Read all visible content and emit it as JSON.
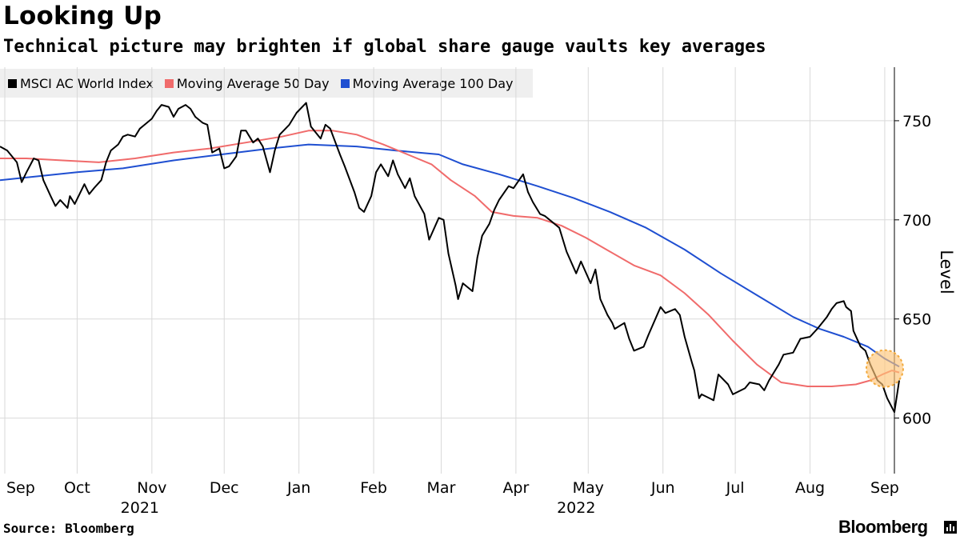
{
  "title": "Looking Up",
  "subtitle": "Technical picture may brighten if global share gauge vaults key averages",
  "source": "Source: Bloomberg",
  "brand": "Bloomberg",
  "chart_data": {
    "type": "line",
    "xlabel": "",
    "ylabel": "Level",
    "ylim": [
      572,
      777
    ],
    "yticks": [
      600,
      650,
      700,
      750
    ],
    "xlim": [
      "2021-08-30",
      "2022-09-05"
    ],
    "month_ticks": [
      {
        "date": "2021-09-01",
        "label": "Sep"
      },
      {
        "date": "2021-10-01",
        "label": "Oct"
      },
      {
        "date": "2021-11-01",
        "label": "Nov"
      },
      {
        "date": "2021-12-01",
        "label": "Dec"
      },
      {
        "date": "2022-01-01",
        "label": "Jan"
      },
      {
        "date": "2022-02-01",
        "label": "Feb"
      },
      {
        "date": "2022-03-01",
        "label": "Mar"
      },
      {
        "date": "2022-04-01",
        "label": "Apr"
      },
      {
        "date": "2022-05-01",
        "label": "May"
      },
      {
        "date": "2022-06-01",
        "label": "Jun"
      },
      {
        "date": "2022-07-01",
        "label": "Jul"
      },
      {
        "date": "2022-08-01",
        "label": "Aug"
      },
      {
        "date": "2022-09-01",
        "label": "Sep"
      }
    ],
    "year_labels": [
      {
        "date": "2021-11-01",
        "label": "2021"
      },
      {
        "date": "2022-05-01",
        "label": "2022"
      }
    ],
    "grid": true,
    "legend_position": "top-left",
    "highlight": {
      "date": "2022-09-01",
      "value": 625
    },
    "series": [
      {
        "name": "MSCI AC World Index",
        "color": "#000000",
        "points": [
          [
            "2021-08-30",
            737
          ],
          [
            "2021-09-02",
            735
          ],
          [
            "2021-09-06",
            729
          ],
          [
            "2021-09-08",
            719
          ],
          [
            "2021-09-10",
            724
          ],
          [
            "2021-09-13",
            731
          ],
          [
            "2021-09-15",
            730
          ],
          [
            "2021-09-17",
            720
          ],
          [
            "2021-09-20",
            712
          ],
          [
            "2021-09-22",
            707
          ],
          [
            "2021-09-24",
            710
          ],
          [
            "2021-09-27",
            706
          ],
          [
            "2021-09-28",
            712
          ],
          [
            "2021-09-30",
            708
          ],
          [
            "2021-10-04",
            718
          ],
          [
            "2021-10-06",
            713
          ],
          [
            "2021-10-08",
            716
          ],
          [
            "2021-10-11",
            720
          ],
          [
            "2021-10-13",
            729
          ],
          [
            "2021-10-15",
            735
          ],
          [
            "2021-10-18",
            738
          ],
          [
            "2021-10-20",
            742
          ],
          [
            "2021-10-22",
            743
          ],
          [
            "2021-10-25",
            742
          ],
          [
            "2021-10-27",
            746
          ],
          [
            "2021-10-29",
            748
          ],
          [
            "2021-11-01",
            751
          ],
          [
            "2021-11-03",
            755
          ],
          [
            "2021-11-05",
            758
          ],
          [
            "2021-11-08",
            757
          ],
          [
            "2021-11-10",
            752
          ],
          [
            "2021-11-12",
            756
          ],
          [
            "2021-11-15",
            758
          ],
          [
            "2021-11-17",
            756
          ],
          [
            "2021-11-19",
            752
          ],
          [
            "2021-11-22",
            749
          ],
          [
            "2021-11-24",
            748
          ],
          [
            "2021-11-26",
            734
          ],
          [
            "2021-11-29",
            736
          ],
          [
            "2021-12-01",
            726
          ],
          [
            "2021-12-03",
            727
          ],
          [
            "2021-12-06",
            732
          ],
          [
            "2021-12-08",
            745
          ],
          [
            "2021-12-10",
            745
          ],
          [
            "2021-12-13",
            739
          ],
          [
            "2021-12-15",
            741
          ],
          [
            "2021-12-17",
            737
          ],
          [
            "2021-12-20",
            724
          ],
          [
            "2021-12-22",
            735
          ],
          [
            "2021-12-24",
            743
          ],
          [
            "2021-12-28",
            748
          ],
          [
            "2021-12-31",
            754
          ],
          [
            "2022-01-04",
            759
          ],
          [
            "2022-01-06",
            747
          ],
          [
            "2022-01-10",
            741
          ],
          [
            "2022-01-12",
            748
          ],
          [
            "2022-01-14",
            746
          ],
          [
            "2022-01-18",
            733
          ],
          [
            "2022-01-20",
            727
          ],
          [
            "2022-01-24",
            714
          ],
          [
            "2022-01-26",
            706
          ],
          [
            "2022-01-28",
            704
          ],
          [
            "2022-01-31",
            712
          ],
          [
            "2022-02-02",
            724
          ],
          [
            "2022-02-04",
            728
          ],
          [
            "2022-02-07",
            722
          ],
          [
            "2022-02-09",
            730
          ],
          [
            "2022-02-11",
            723
          ],
          [
            "2022-02-14",
            716
          ],
          [
            "2022-02-16",
            721
          ],
          [
            "2022-02-18",
            712
          ],
          [
            "2022-02-22",
            703
          ],
          [
            "2022-02-24",
            690
          ],
          [
            "2022-02-28",
            701
          ],
          [
            "2022-03-02",
            700
          ],
          [
            "2022-03-04",
            683
          ],
          [
            "2022-03-07",
            667
          ],
          [
            "2022-03-08",
            660
          ],
          [
            "2022-03-10",
            668
          ],
          [
            "2022-03-14",
            664
          ],
          [
            "2022-03-16",
            681
          ],
          [
            "2022-03-18",
            692
          ],
          [
            "2022-03-21",
            698
          ],
          [
            "2022-03-23",
            705
          ],
          [
            "2022-03-25",
            710
          ],
          [
            "2022-03-29",
            717
          ],
          [
            "2022-03-31",
            716
          ],
          [
            "2022-04-04",
            723
          ],
          [
            "2022-04-06",
            714
          ],
          [
            "2022-04-08",
            709
          ],
          [
            "2022-04-11",
            703
          ],
          [
            "2022-04-13",
            702
          ],
          [
            "2022-04-19",
            696
          ],
          [
            "2022-04-22",
            684
          ],
          [
            "2022-04-26",
            673
          ],
          [
            "2022-04-28",
            679
          ],
          [
            "2022-05-02",
            668
          ],
          [
            "2022-05-04",
            675
          ],
          [
            "2022-05-06",
            660
          ],
          [
            "2022-05-09",
            652
          ],
          [
            "2022-05-11",
            648
          ],
          [
            "2022-05-12",
            645
          ],
          [
            "2022-05-16",
            648
          ],
          [
            "2022-05-18",
            640
          ],
          [
            "2022-05-20",
            634
          ],
          [
            "2022-05-24",
            636
          ],
          [
            "2022-05-26",
            642
          ],
          [
            "2022-05-31",
            656
          ],
          [
            "2022-06-02",
            653
          ],
          [
            "2022-06-06",
            655
          ],
          [
            "2022-06-08",
            652
          ],
          [
            "2022-06-10",
            641
          ],
          [
            "2022-06-13",
            628
          ],
          [
            "2022-06-14",
            624
          ],
          [
            "2022-06-16",
            610
          ],
          [
            "2022-06-17",
            612
          ],
          [
            "2022-06-22",
            609
          ],
          [
            "2022-06-24",
            622
          ],
          [
            "2022-06-28",
            617
          ],
          [
            "2022-06-30",
            612
          ],
          [
            "2022-07-05",
            615
          ],
          [
            "2022-07-07",
            618
          ],
          [
            "2022-07-11",
            617
          ],
          [
            "2022-07-13",
            614
          ],
          [
            "2022-07-15",
            619
          ],
          [
            "2022-07-19",
            627
          ],
          [
            "2022-07-21",
            632
          ],
          [
            "2022-07-25",
            633
          ],
          [
            "2022-07-28",
            640
          ],
          [
            "2022-08-01",
            641
          ],
          [
            "2022-08-04",
            645
          ],
          [
            "2022-08-08",
            651
          ],
          [
            "2022-08-10",
            655
          ],
          [
            "2022-08-12",
            658
          ],
          [
            "2022-08-15",
            659
          ],
          [
            "2022-08-16",
            656
          ],
          [
            "2022-08-18",
            654
          ],
          [
            "2022-08-19",
            644
          ],
          [
            "2022-08-22",
            636
          ],
          [
            "2022-08-24",
            634
          ],
          [
            "2022-08-26",
            627
          ],
          [
            "2022-08-29",
            619
          ],
          [
            "2022-08-31",
            617
          ],
          [
            "2022-09-02",
            610
          ],
          [
            "2022-09-05",
            603
          ],
          [
            "2022-09-06",
            611
          ],
          [
            "2022-09-07",
            619
          ]
        ]
      },
      {
        "name": "Moving Average 50 Day",
        "color": "#f06b6b",
        "points": [
          [
            "2021-08-30",
            731
          ],
          [
            "2021-09-10",
            731
          ],
          [
            "2021-09-25",
            730
          ],
          [
            "2021-10-10",
            729
          ],
          [
            "2021-10-25",
            731
          ],
          [
            "2021-11-10",
            734
          ],
          [
            "2021-11-25",
            736
          ],
          [
            "2021-12-10",
            739
          ],
          [
            "2021-12-25",
            742
          ],
          [
            "2022-01-05",
            745
          ],
          [
            "2022-01-15",
            745
          ],
          [
            "2022-01-25",
            743
          ],
          [
            "2022-02-05",
            738
          ],
          [
            "2022-02-15",
            733
          ],
          [
            "2022-02-25",
            728
          ],
          [
            "2022-03-05",
            720
          ],
          [
            "2022-03-15",
            712
          ],
          [
            "2022-03-22",
            704
          ],
          [
            "2022-03-31",
            702
          ],
          [
            "2022-04-10",
            701
          ],
          [
            "2022-04-20",
            697
          ],
          [
            "2022-04-30",
            691
          ],
          [
            "2022-05-10",
            684
          ],
          [
            "2022-05-20",
            677
          ],
          [
            "2022-05-31",
            672
          ],
          [
            "2022-06-10",
            663
          ],
          [
            "2022-06-20",
            652
          ],
          [
            "2022-06-30",
            639
          ],
          [
            "2022-07-10",
            627
          ],
          [
            "2022-07-20",
            618
          ],
          [
            "2022-07-31",
            616
          ],
          [
            "2022-08-10",
            616
          ],
          [
            "2022-08-20",
            617
          ],
          [
            "2022-08-26",
            619
          ],
          [
            "2022-08-31",
            622
          ],
          [
            "2022-09-04",
            624
          ],
          [
            "2022-09-07",
            623
          ]
        ]
      },
      {
        "name": "Moving Average 100 Day",
        "color": "#1f4fd1",
        "points": [
          [
            "2021-08-30",
            720
          ],
          [
            "2021-09-15",
            722
          ],
          [
            "2021-10-01",
            724
          ],
          [
            "2021-10-20",
            726
          ],
          [
            "2021-11-10",
            730
          ],
          [
            "2021-11-30",
            733
          ],
          [
            "2021-12-20",
            736
          ],
          [
            "2022-01-05",
            738
          ],
          [
            "2022-01-25",
            737
          ],
          [
            "2022-02-10",
            735
          ],
          [
            "2022-02-28",
            733
          ],
          [
            "2022-03-10",
            728
          ],
          [
            "2022-03-25",
            723
          ],
          [
            "2022-04-10",
            717
          ],
          [
            "2022-04-25",
            711
          ],
          [
            "2022-05-10",
            704
          ],
          [
            "2022-05-25",
            696
          ],
          [
            "2022-06-10",
            685
          ],
          [
            "2022-06-25",
            673
          ],
          [
            "2022-07-10",
            662
          ],
          [
            "2022-07-25",
            651
          ],
          [
            "2022-08-05",
            645
          ],
          [
            "2022-08-15",
            641
          ],
          [
            "2022-08-25",
            636
          ],
          [
            "2022-09-01",
            630
          ],
          [
            "2022-09-07",
            626
          ]
        ]
      }
    ]
  }
}
